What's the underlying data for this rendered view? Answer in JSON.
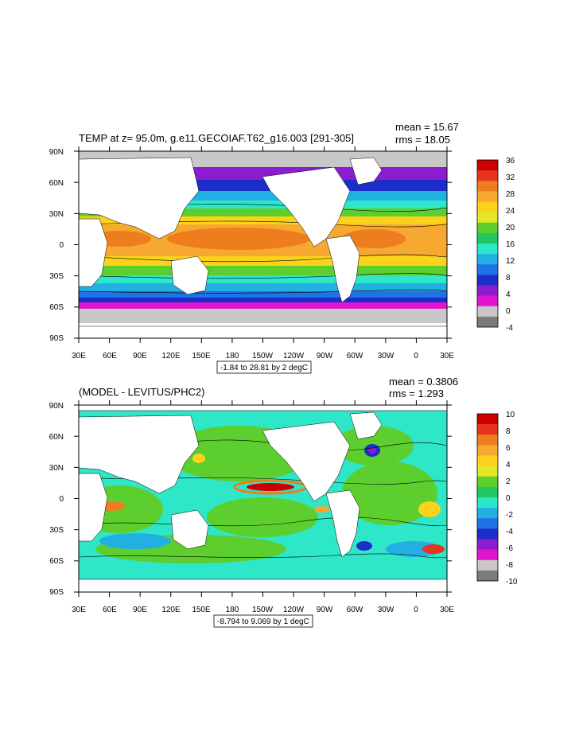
{
  "panels": [
    {
      "title_left": "TEMP at z=  95.0m, g.e11.GECOIAF.T62_g16.003 [291-305]",
      "stat_mean": "mean = 15.67",
      "stat_rms": "rms = 18.05",
      "range_label": "-1.84 to 28.81 by 2 degC",
      "x_ticks": [
        "30E",
        "60E",
        "90E",
        "120E",
        "150E",
        "180",
        "150W",
        "120W",
        "90W",
        "60W",
        "30W",
        "0",
        "30E"
      ],
      "y_ticks": [
        "90N",
        "60N",
        "30N",
        "0",
        "30S",
        "60S",
        "90S"
      ],
      "colorbar_labels": [
        "36",
        "32",
        "28",
        "24",
        "20",
        "16",
        "12",
        "8",
        "4",
        "0",
        "-4"
      ],
      "colorbar_colors": [
        "#cc0000",
        "#e8341c",
        "#ee7d1d",
        "#f6a830",
        "#fdd21b",
        "#e5e726",
        "#5cce2e",
        "#22c55f",
        "#2ee6c8",
        "#22b0e3",
        "#1f73e5",
        "#1c2ec9",
        "#8c1cd0",
        "#e314cd",
        "#c8c8c8",
        "#7a7a7a"
      ]
    },
    {
      "title_left": "(MODEL - LEVITUS/PHC2)",
      "stat_mean": "mean = 0.3806",
      "stat_rms": "rms = 1.293",
      "range_label": "-8.794 to 9.069 by 1 degC",
      "x_ticks": [
        "30E",
        "60E",
        "90E",
        "120E",
        "150E",
        "180",
        "150W",
        "120W",
        "90W",
        "60W",
        "30W",
        "0",
        "30E"
      ],
      "y_ticks": [
        "90N",
        "60N",
        "30N",
        "0",
        "30S",
        "60S",
        "90S"
      ],
      "colorbar_labels": [
        "10",
        "8",
        "6",
        "4",
        "2",
        "0",
        "-2",
        "-4",
        "-6",
        "-8",
        "-10"
      ],
      "colorbar_colors": [
        "#cc0000",
        "#e8341c",
        "#ee7d1d",
        "#f6a830",
        "#fdd21b",
        "#e5e726",
        "#5cce2e",
        "#22c55f",
        "#2ee6c8",
        "#22b0e3",
        "#1f73e5",
        "#1c2ec9",
        "#8c1cd0",
        "#e314cd",
        "#c8c8c8",
        "#7a7a7a"
      ]
    }
  ],
  "chart_data": [
    {
      "type": "heatmap",
      "title": "TEMP at z=  95.0m, g.e11.GECOIAF.T62_g16.003 [291-305]",
      "stats": {
        "mean": 15.67,
        "rms": 18.05
      },
      "units": "degC",
      "field_range": [
        -1.84,
        28.81
      ],
      "contour_interval": 2,
      "xlim": [
        "30E",
        "30E"
      ],
      "ylim": [
        "90S",
        "90N"
      ],
      "colorbar_ticks": [
        36,
        32,
        28,
        24,
        20,
        16,
        12,
        8,
        4,
        0,
        -4
      ],
      "land_color": "#ffffff",
      "ice_color": "#c8c8c8"
    },
    {
      "type": "heatmap",
      "title": "(MODEL - LEVITUS/PHC2)",
      "stats": {
        "mean": 0.3806,
        "rms": 1.293
      },
      "units": "degC",
      "field_range": [
        -8.794,
        9.069
      ],
      "contour_interval": 1,
      "xlim": [
        "30E",
        "30E"
      ],
      "ylim": [
        "90S",
        "90N"
      ],
      "colorbar_ticks": [
        10,
        8,
        6,
        4,
        2,
        0,
        -2,
        -4,
        -6,
        -8,
        -10
      ],
      "land_color": "#ffffff",
      "ice_color": "#c8c8c8"
    }
  ]
}
